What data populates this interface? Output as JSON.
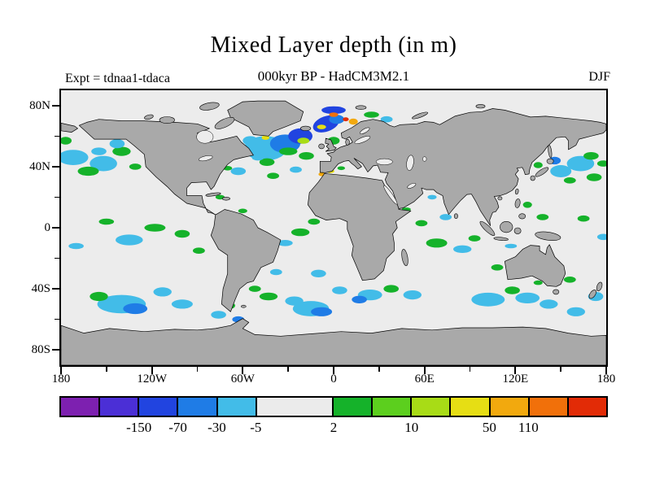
{
  "chart_data": {
    "type": "heatmap",
    "projection": "equirectangular",
    "title": "Mixed Layer depth (in m)",
    "subtitle": "000kyr BP - HadCM3M2.1",
    "experiment_label": "Expt = tdnaa1-tdaca",
    "season_label": "DJF",
    "units": "m",
    "lon_range": [
      -180,
      180
    ],
    "lat_range": [
      -90,
      90
    ],
    "legend_values": [
      -150,
      -70,
      -30,
      -5,
      2,
      10,
      50,
      110
    ],
    "palette": [
      "#7d20b0",
      "#4b2fd6",
      "#2144e0",
      "#1f7ce6",
      "#42bce8",
      "#ebebeb",
      "#15b22a",
      "#5ccf1e",
      "#a8dc16",
      "#e6de14",
      "#f2a90e",
      "#f1700a",
      "#e22b06"
    ],
    "ocean_color": "#ececec",
    "land_color": "#a9a9a9",
    "anomaly_regions": [
      [
        -172,
        46,
        10,
        5,
        0,
        4
      ],
      [
        -152,
        42,
        9,
        5,
        0,
        4
      ],
      [
        -162,
        37,
        7,
        3,
        0,
        6
      ],
      [
        -140,
        50,
        6,
        3,
        0,
        6
      ],
      [
        -143,
        55,
        5,
        3,
        0,
        4
      ],
      [
        -177,
        57,
        4,
        2.5,
        0,
        6
      ],
      [
        -131,
        40,
        4,
        2,
        0,
        6
      ],
      [
        -155,
        50,
        5,
        2.5,
        0,
        4
      ],
      [
        163,
        42,
        9,
        5,
        0,
        4
      ],
      [
        150,
        37,
        7,
        4,
        0,
        4
      ],
      [
        172,
        33,
        5,
        2.5,
        0,
        6
      ],
      [
        156,
        31,
        4,
        2,
        0,
        6
      ],
      [
        146,
        44,
        4,
        2.5,
        0,
        3
      ],
      [
        170,
        47,
        5,
        2.5,
        0,
        6
      ],
      [
        178,
        42,
        4,
        2,
        0,
        6
      ],
      [
        135,
        41,
        3,
        2,
        0,
        6
      ],
      [
        -135,
        -8,
        9,
        3.5,
        0,
        4
      ],
      [
        -118,
        0,
        7,
        2.5,
        0,
        6
      ],
      [
        -100,
        -4,
        5,
        2.5,
        0,
        6
      ],
      [
        -89,
        -15,
        4,
        2,
        0,
        6
      ],
      [
        -150,
        4,
        5,
        2,
        0,
        6
      ],
      [
        -170,
        -12,
        5,
        2,
        0,
        4
      ],
      [
        178,
        -6,
        4,
        2,
        0,
        4
      ],
      [
        165,
        6,
        4,
        2,
        0,
        6
      ],
      [
        -140,
        -50,
        16,
        6,
        0,
        4
      ],
      [
        -131,
        -53,
        8,
        3.5,
        0,
        3
      ],
      [
        -155,
        -45,
        6,
        3,
        0,
        6
      ],
      [
        -113,
        -42,
        6,
        3,
        0,
        4
      ],
      [
        -100,
        -50,
        7,
        3,
        0,
        4
      ],
      [
        -76,
        -57,
        5,
        2.5,
        0,
        4
      ],
      [
        -63,
        -60,
        4,
        2,
        0,
        3
      ],
      [
        -68,
        -51,
        3,
        2,
        0,
        6
      ],
      [
        -15,
        -53,
        12,
        5,
        0,
        4
      ],
      [
        -8,
        -55,
        7,
        3,
        0,
        3
      ],
      [
        -26,
        -48,
        6,
        3,
        0,
        4
      ],
      [
        -43,
        -45,
        6,
        2.5,
        0,
        6
      ],
      [
        -52,
        -40,
        4,
        2,
        0,
        6
      ],
      [
        -38,
        -29,
        4,
        2,
        0,
        4
      ],
      [
        -10,
        -30,
        5,
        2.5,
        0,
        4
      ],
      [
        4,
        -41,
        5,
        2.5,
        0,
        4
      ],
      [
        -22,
        -3,
        6,
        2.5,
        0,
        6
      ],
      [
        -32,
        -10,
        5,
        2,
        0,
        4
      ],
      [
        -13,
        4,
        4,
        2,
        0,
        6
      ],
      [
        24,
        -44,
        8,
        3.5,
        0,
        4
      ],
      [
        17,
        -47,
        5,
        2.5,
        0,
        3
      ],
      [
        38,
        -40,
        5,
        2.5,
        0,
        6
      ],
      [
        52,
        -44,
        6,
        3,
        0,
        4
      ],
      [
        68,
        -10,
        7,
        3,
        0,
        6
      ],
      [
        85,
        -14,
        6,
        2.5,
        0,
        4
      ],
      [
        58,
        3,
        4,
        2,
        0,
        6
      ],
      [
        93,
        -7,
        4,
        2,
        0,
        6
      ],
      [
        74,
        7,
        4,
        2,
        0,
        4
      ],
      [
        65,
        20,
        3,
        1.5,
        0,
        4
      ],
      [
        48,
        12,
        3,
        1.3,
        0,
        6
      ],
      [
        108,
        -26,
        4,
        2,
        0,
        6
      ],
      [
        102,
        -47,
        11,
        4.5,
        0,
        4
      ],
      [
        128,
        -46,
        8,
        3.5,
        0,
        4
      ],
      [
        118,
        -41,
        5,
        2.5,
        0,
        6
      ],
      [
        142,
        -50,
        6,
        3,
        0,
        4
      ],
      [
        160,
        -55,
        6,
        3,
        0,
        4
      ],
      [
        173,
        -45,
        5,
        3,
        0,
        4
      ],
      [
        156,
        -34,
        4,
        2,
        0,
        6
      ],
      [
        135,
        -36,
        3,
        1.5,
        0,
        6
      ],
      [
        128,
        15,
        3,
        2,
        0,
        6
      ],
      [
        138,
        7,
        4,
        2,
        0,
        6
      ],
      [
        117,
        -12,
        4,
        1.5,
        0,
        4
      ],
      [
        -45,
        52,
        14,
        8,
        0,
        4
      ],
      [
        -32,
        55,
        10,
        6,
        0,
        3
      ],
      [
        -22,
        60,
        8,
        5,
        0,
        2
      ],
      [
        -5,
        68,
        9,
        5,
        -20,
        2
      ],
      [
        2,
        71,
        5,
        3,
        0,
        3
      ],
      [
        0,
        77,
        8,
        2.5,
        0,
        2
      ],
      [
        13,
        69.5,
        3,
        2,
        0,
        10
      ],
      [
        8,
        71,
        2,
        1.3,
        0,
        12
      ],
      [
        0,
        74,
        3,
        1.5,
        0,
        11
      ],
      [
        -8,
        66,
        3,
        1.5,
        0,
        9
      ],
      [
        -45,
        59,
        2.5,
        1.5,
        0,
        9
      ],
      [
        -20,
        57,
        4,
        2,
        0,
        8
      ],
      [
        -30,
        50,
        6,
        2.5,
        0,
        6
      ],
      [
        -18,
        47,
        5,
        2.5,
        0,
        6
      ],
      [
        -44,
        43,
        5,
        2.5,
        0,
        6
      ],
      [
        -55,
        57,
        5,
        3,
        0,
        4
      ],
      [
        -50,
        46,
        4,
        2,
        0,
        4
      ],
      [
        0,
        57,
        4,
        2.5,
        0,
        6
      ],
      [
        -63,
        37,
        5,
        2.5,
        0,
        4
      ],
      [
        -70,
        39,
        3,
        1.5,
        0,
        6
      ],
      [
        -40,
        34,
        4,
        2,
        0,
        6
      ],
      [
        -25,
        38,
        4,
        2,
        0,
        4
      ],
      [
        25,
        74,
        5,
        2,
        0,
        6
      ],
      [
        35,
        71,
        4,
        2,
        0,
        4
      ],
      [
        -45,
        79,
        5,
        1.8,
        0,
        4
      ],
      [
        -60,
        72,
        4,
        2.5,
        0,
        4
      ],
      [
        -2,
        37,
        2.5,
        1.2,
        0,
        9
      ],
      [
        -8,
        35,
        2,
        1.2,
        0,
        10
      ],
      [
        5,
        39,
        2.5,
        1.2,
        0,
        6
      ],
      [
        -75,
        20,
        3,
        1.5,
        0,
        6
      ],
      [
        -60,
        11,
        3,
        1.5,
        0,
        6
      ]
    ]
  },
  "axes": {
    "lat_labels": [
      {
        "text": "80N",
        "lat": 80
      },
      {
        "text": "40N",
        "lat": 40
      },
      {
        "text": "0",
        "lat": 0
      },
      {
        "text": "40S",
        "lat": -40
      },
      {
        "text": "80S",
        "lat": -80
      }
    ],
    "lat_minor": [
      60,
      20,
      -20,
      -60
    ],
    "lon_labels": [
      {
        "text": "180",
        "lon": -180
      },
      {
        "text": "120W",
        "lon": -120
      },
      {
        "text": "60W",
        "lon": -60
      },
      {
        "text": "0",
        "lon": 0
      },
      {
        "text": "60E",
        "lon": 60
      },
      {
        "text": "120E",
        "lon": 120
      },
      {
        "text": "180",
        "lon": 180
      }
    ],
    "lon_minor": [
      -150,
      -90,
      -30,
      30,
      90,
      150
    ]
  },
  "colorbar": {
    "total_units": 14,
    "segments": [
      {
        "color": "#7d20b0",
        "w": 1
      },
      {
        "color": "#4b2fd6",
        "w": 1
      },
      {
        "color": "#2144e0",
        "w": 1
      },
      {
        "color": "#1f7ce6",
        "w": 1
      },
      {
        "color": "#42bce8",
        "w": 1
      },
      {
        "color": "#ebebeb",
        "w": 2
      },
      {
        "color": "#15b22a",
        "w": 1
      },
      {
        "color": "#5ccf1e",
        "w": 1
      },
      {
        "color": "#a8dc16",
        "w": 1
      },
      {
        "color": "#e6de14",
        "w": 1
      },
      {
        "color": "#f2a90e",
        "w": 1
      },
      {
        "color": "#f1700a",
        "w": 1
      },
      {
        "color": "#e22b06",
        "w": 1
      }
    ],
    "labels": [
      {
        "text": "-150",
        "u": 2
      },
      {
        "text": "-70",
        "u": 3
      },
      {
        "text": "-30",
        "u": 4
      },
      {
        "text": "-5",
        "u": 5
      },
      {
        "text": "2",
        "u": 7
      },
      {
        "text": "10",
        "u": 9
      },
      {
        "text": "50",
        "u": 11
      },
      {
        "text": "110",
        "u": 12
      }
    ]
  }
}
